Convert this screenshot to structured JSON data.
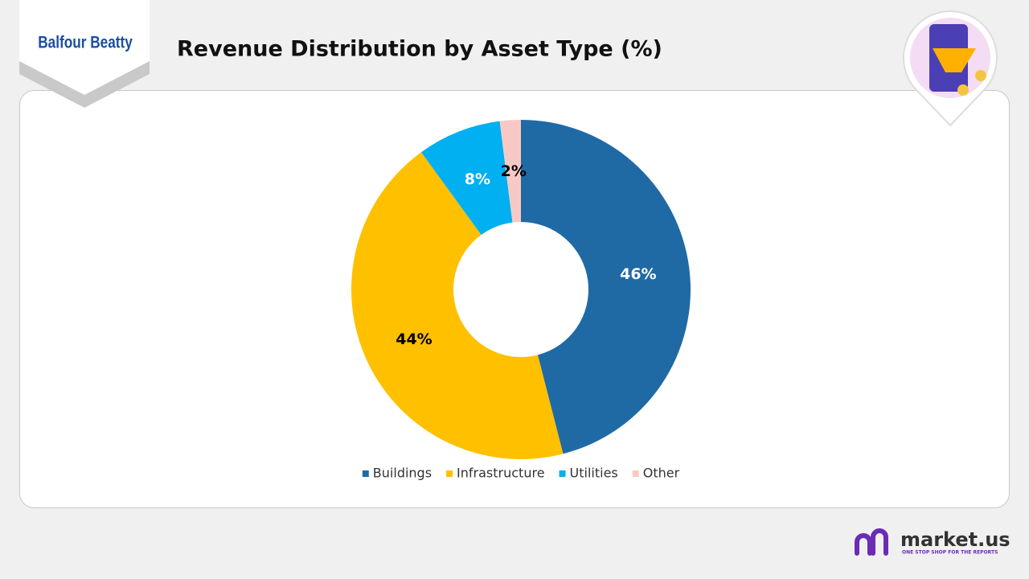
{
  "chart_data": {
    "type": "donut",
    "title": "Revenue Distribution by Asset Type (%)",
    "categories": [
      "Buildings",
      "Infrastructure",
      "Utilities",
      "Other"
    ],
    "values": [
      46,
      44,
      8,
      2
    ],
    "value_labels": [
      "46%",
      "44%",
      "8%",
      "2%"
    ],
    "colors": [
      "#1f6aa5",
      "#ffc000",
      "#00b0f0",
      "#f8c9c4"
    ],
    "legend": "bottom"
  },
  "branding": {
    "company": "Balfour Beatty",
    "publisher": "market.us",
    "tagline": "ONE STOP SHOP FOR THE REPORTS"
  }
}
